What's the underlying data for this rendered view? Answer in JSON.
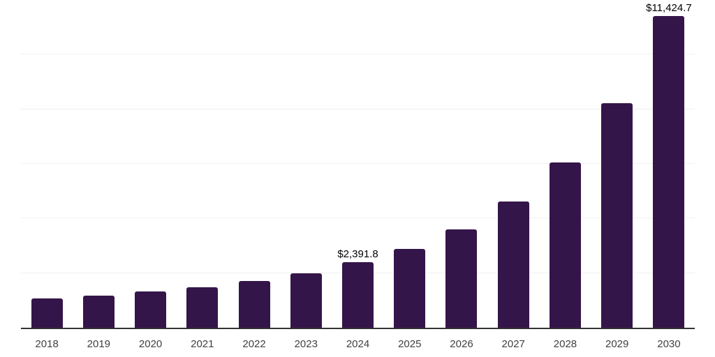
{
  "chart_data": {
    "type": "bar",
    "title": "",
    "xlabel": "",
    "ylabel": "",
    "categories": [
      "2018",
      "2019",
      "2020",
      "2021",
      "2022",
      "2023",
      "2024",
      "2025",
      "2026",
      "2027",
      "2028",
      "2029",
      "2030"
    ],
    "values": [
      1068,
      1172,
      1324,
      1490,
      1705,
      1985,
      2391.8,
      2880,
      3600,
      4625,
      6055,
      8210,
      11424.7
    ],
    "data_labels": {
      "2024": "$2,391.8",
      "2030": "$11,424.7"
    },
    "ylim": [
      0,
      12000
    ],
    "gridline_values": [
      2000,
      4000,
      6000,
      8000,
      10000,
      12000
    ],
    "grid": true,
    "legend": "none",
    "colors": {
      "bar": "#341549",
      "axis_line": "#333333",
      "gridline": "#f0f0f0",
      "tick_label": "#404040",
      "data_label": "#000000",
      "background": "#ffffff"
    }
  }
}
